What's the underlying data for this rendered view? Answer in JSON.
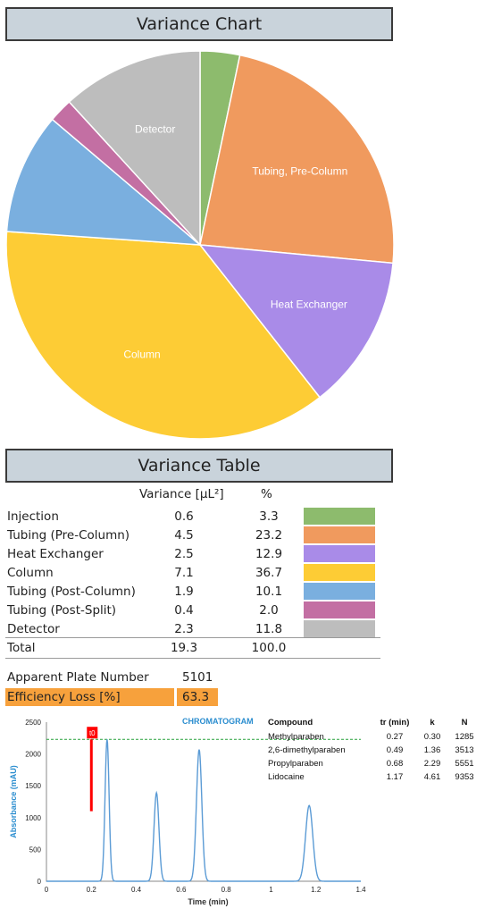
{
  "pie_header": "Variance Chart",
  "table_header": "Variance Table",
  "table": {
    "col_variance": "Variance [µL²]",
    "col_percent": "%",
    "rows": [
      {
        "name": "Injection",
        "variance": "0.6",
        "percent": "3.3",
        "color": "#8dbb6d"
      },
      {
        "name": "Tubing (Pre-Column)",
        "variance": "4.5",
        "percent": "23.2",
        "color": "#f09a5e"
      },
      {
        "name": "Heat Exchanger",
        "variance": "2.5",
        "percent": "12.9",
        "color": "#a98be8"
      },
      {
        "name": "Column",
        "variance": "7.1",
        "percent": "36.7",
        "color": "#fdcc35"
      },
      {
        "name": "Tubing (Post-Column)",
        "variance": "1.9",
        "percent": "10.1",
        "color": "#7aafdf"
      },
      {
        "name": "Tubing (Post-Split)",
        "variance": "0.4",
        "percent": "2.0",
        "color": "#c36fa3"
      },
      {
        "name": "Detector",
        "variance": "2.3",
        "percent": "11.8",
        "color": "#bdbdbd"
      }
    ],
    "total": {
      "name": "Total",
      "variance": "19.3",
      "percent": "100.0"
    }
  },
  "metrics": {
    "plate_label": "Apparent Plate Number",
    "plate_value": "5101",
    "loss_label": "Efficiency Loss [%]",
    "loss_value": "63.3",
    "loss_color": "#f7a13c"
  },
  "chart_data": [
    {
      "type": "pie",
      "title": "Variance Chart",
      "slices": [
        {
          "name": "Injection",
          "value": 3.3,
          "color": "#8dbb6d",
          "label": ""
        },
        {
          "name": "Tubing (Pre-Column)",
          "value": 23.2,
          "color": "#f09a5e",
          "label": "Tubing, Pre-Column"
        },
        {
          "name": "Heat Exchanger",
          "value": 12.9,
          "color": "#a98be8",
          "label": "Heat Exchanger"
        },
        {
          "name": "Column",
          "value": 36.7,
          "color": "#fdcc35",
          "label": "Column"
        },
        {
          "name": "Tubing (Post-Column)",
          "value": 10.1,
          "color": "#7aafdf",
          "label": ""
        },
        {
          "name": "Tubing (Post-Split)",
          "value": 2.0,
          "color": "#c36fa3",
          "label": ""
        },
        {
          "name": "Detector",
          "value": 11.8,
          "color": "#bdbdbd",
          "label": "Detector"
        }
      ]
    },
    {
      "type": "line",
      "title": "CHROMATOGRAM",
      "xlabel": "Time (min)",
      "ylabel": "Absorbance (mAU)",
      "xlim": [
        0,
        1.4
      ],
      "ylim": [
        0,
        2500
      ],
      "xticks": [
        "0",
        "0.2",
        "0.4",
        "0.6",
        "0.8",
        "1",
        "1.2",
        "1.4"
      ],
      "yticks": [
        "0",
        "500",
        "1000",
        "1500",
        "2000",
        "2500"
      ],
      "line_color": "#5b9bd5",
      "peaks": [
        {
          "t": 0.27,
          "height": 2230,
          "width": 0.009
        },
        {
          "t": 0.49,
          "height": 1390,
          "width": 0.011
        },
        {
          "t": 0.68,
          "height": 2070,
          "width": 0.012
        },
        {
          "t": 1.17,
          "height": 1190,
          "width": 0.016
        }
      ],
      "reference_line": {
        "y": 2230,
        "color": "#27a13a"
      },
      "t0_marker": {
        "x": 0.2,
        "y_top": 2230,
        "y_bottom": 1100,
        "label": "t0",
        "color": "#ff0000"
      },
      "table": {
        "headers": [
          "Compound",
          "tr (min)",
          "k",
          "N"
        ],
        "rows": [
          [
            "Methylparaben",
            "0.27",
            "0.30",
            "1285"
          ],
          [
            "2,6-dimethylparaben",
            "0.49",
            "1.36",
            "3513"
          ],
          [
            "Propylparaben",
            "0.68",
            "2.29",
            "5551"
          ],
          [
            "Lidocaine",
            "1.17",
            "4.61",
            "9353"
          ]
        ]
      }
    }
  ]
}
